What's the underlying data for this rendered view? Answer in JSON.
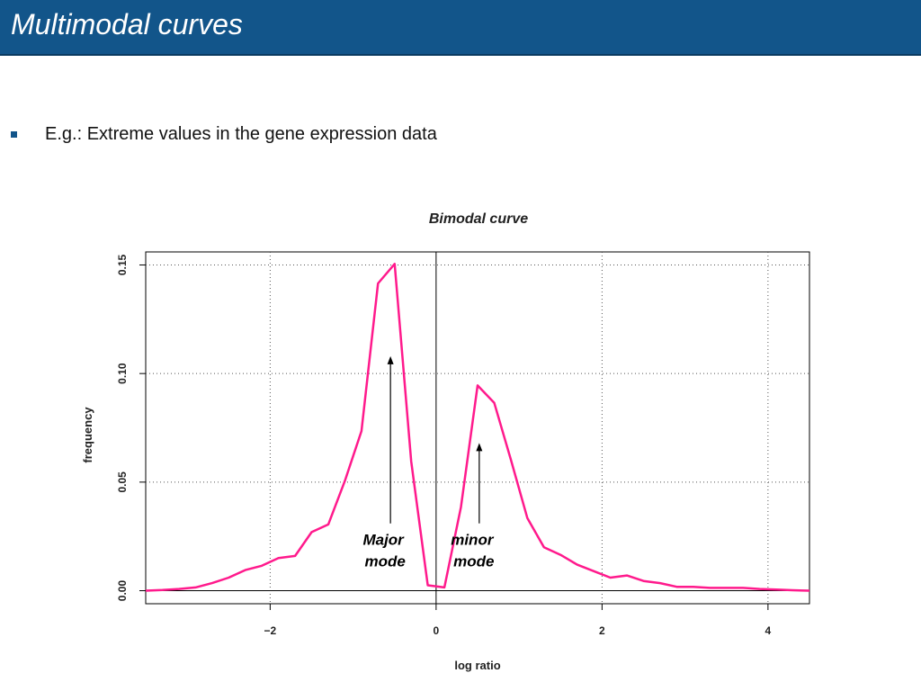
{
  "slide": {
    "title": "Multimodal curves",
    "bullets": [
      "E.g.: Extreme values in the gene expression data"
    ]
  },
  "colors": {
    "title_bar": "#12558a",
    "curve": "#ff1a8c",
    "bullet": "#12558a"
  },
  "chart_data": {
    "type": "line",
    "title": "Bimodal curve",
    "xlabel": "log ratio",
    "ylabel": "frequency",
    "xlim": [
      -3.5,
      4.5
    ],
    "ylim": [
      -0.006,
      0.156
    ],
    "xticks": [
      {
        "value": -2,
        "label": "−2"
      },
      {
        "value": 0,
        "label": "0"
      },
      {
        "value": 2,
        "label": "2"
      },
      {
        "value": 4,
        "label": "4"
      }
    ],
    "yticks": [
      {
        "value": 0,
        "label": "0.00"
      },
      {
        "value": 0.05,
        "label": "0.05"
      },
      {
        "value": 0.1,
        "label": "0.10"
      },
      {
        "value": 0.15,
        "label": "0.15"
      }
    ],
    "grid": true,
    "series": [
      {
        "x": [
          -3.5,
          -3.3,
          -3.1,
          -2.9,
          -2.7,
          -2.5,
          -2.3,
          -2.1,
          -1.9,
          -1.7,
          -1.5,
          -1.3,
          -1.1,
          -0.9,
          -0.7,
          -0.5,
          -0.3,
          -0.1,
          0.1,
          0.3,
          0.5,
          0.7,
          0.9,
          1.1,
          1.3,
          1.5,
          1.7,
          1.9,
          2.1,
          2.3,
          2.5,
          2.7,
          2.9,
          3.1,
          3.3,
          3.5,
          3.7,
          3.9,
          4.1,
          4.3,
          4.5
        ],
        "y": [
          0.0,
          0.0003,
          0.0008,
          0.0015,
          0.0035,
          0.006,
          0.0095,
          0.0115,
          0.015,
          0.016,
          0.027,
          0.0305,
          0.0505,
          0.0735,
          0.1415,
          0.1505,
          0.0595,
          0.0025,
          0.0015,
          0.0385,
          0.0945,
          0.0865,
          0.0605,
          0.0335,
          0.02,
          0.0165,
          0.012,
          0.009,
          0.006,
          0.007,
          0.0045,
          0.0035,
          0.0018,
          0.0018,
          0.0013,
          0.0013,
          0.0013,
          0.0008,
          0.0005,
          0.0002,
          0.0
        ]
      }
    ],
    "annotations": [
      {
        "text_lines": [
          "Major",
          "mode"
        ],
        "arrow_x": -0.55,
        "arrow_from_y": 0.031,
        "arrow_to_y": 0.108
      },
      {
        "text_lines": [
          "minor",
          "mode"
        ],
        "arrow_x": 0.52,
        "arrow_from_y": 0.031,
        "arrow_to_y": 0.068
      }
    ]
  }
}
